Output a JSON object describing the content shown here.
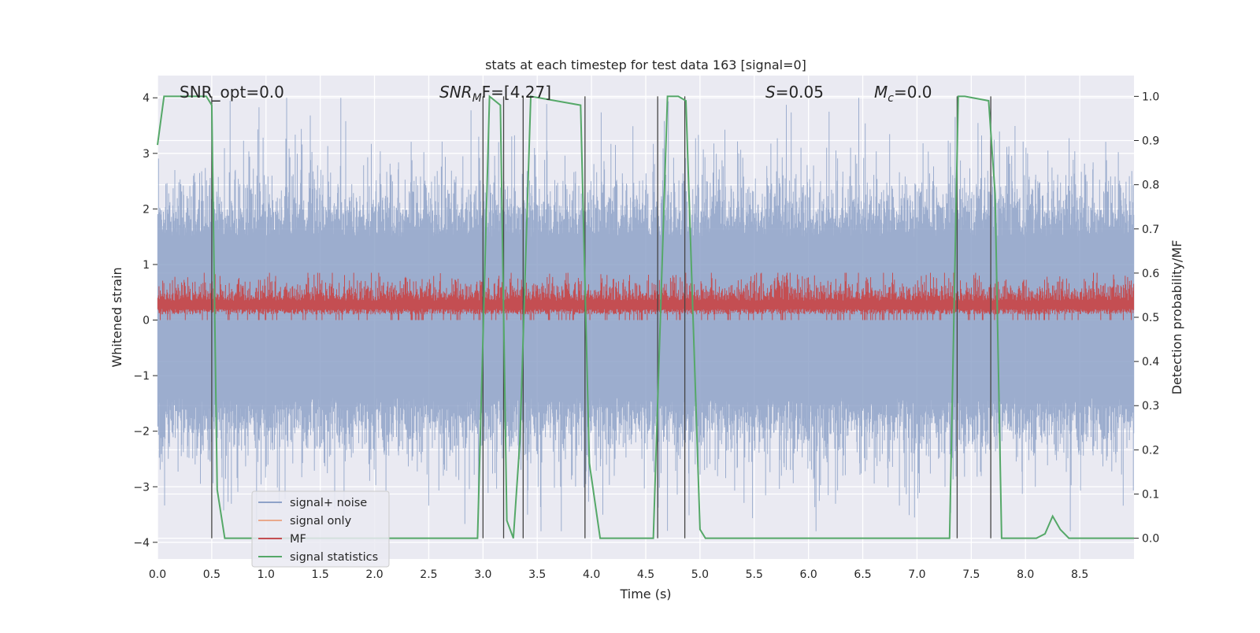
{
  "chart_data": {
    "type": "line",
    "title": "stats at each timestep for test data 163 [signal=0]",
    "xlabel": "Time (s)",
    "ylabel_left": "Whitened strain",
    "ylabel_right": "Detection probability/MF",
    "xlim": [
      0.0,
      9.0
    ],
    "ylim_left": [
      -4.3,
      4.4
    ],
    "ylim_right": [
      -0.047,
      1.047
    ],
    "xticks": [
      0.0,
      0.5,
      1.0,
      1.5,
      2.0,
      2.5,
      3.0,
      3.5,
      4.0,
      4.5,
      5.0,
      5.5,
      6.0,
      6.5,
      7.0,
      7.5,
      8.0,
      8.5
    ],
    "xtick_labels": [
      "0.0",
      "0.5",
      "1.0",
      "1.5",
      "2.0",
      "2.5",
      "3.0",
      "3.5",
      "4.0",
      "4.5",
      "5.0",
      "5.5",
      "6.0",
      "6.5",
      "7.0",
      "7.5",
      "8.0",
      "8.5"
    ],
    "yticks_left": [
      4,
      3,
      2,
      1,
      0,
      -1,
      -2,
      -3,
      -4
    ],
    "ytick_labels_left": [
      "4",
      "3",
      "2",
      "1",
      "0",
      "−1",
      "−2",
      "−3",
      "−4"
    ],
    "yticks_right": [
      1.0,
      0.9,
      0.8,
      0.7,
      0.6,
      0.5,
      0.4,
      0.3,
      0.2,
      0.1,
      0.0
    ],
    "ytick_labels_right": [
      "1.0",
      "0.9",
      "0.8",
      "0.7",
      "0.6",
      "0.5",
      "0.4",
      "0.3",
      "0.2",
      "0.1",
      "0.0"
    ],
    "grid": true,
    "legend_placement": "lower-left",
    "annotations": {
      "snr_opt": "SNR_opt=0.0",
      "snr_mf_base": "SNR",
      "snr_mf_sub": "M",
      "snr_mf_value": "F=[4.27]",
      "s_symbol": "S",
      "s_value": "=0.05",
      "mc_base": "M",
      "mc_sub": "c",
      "mc_value": "=0.0"
    },
    "series": [
      {
        "name": "signal+ noise",
        "color": "#8ea2c8",
        "description_values": "whitened noise, amplitude mostly within ±2.5, peaks up to ±4"
      },
      {
        "name": "signal only",
        "color": "#e9a98c",
        "values": []
      },
      {
        "name": "MF",
        "color": "#c44e52",
        "range_left_axis": [
          0.0,
          0.85
        ]
      },
      {
        "name": "signal statistics",
        "color": "#55a868",
        "axis": "right",
        "x": [
          0.0,
          0.06,
          0.45,
          0.5,
          0.55,
          0.62,
          2.95,
          3.06,
          3.16,
          3.22,
          3.28,
          3.34,
          3.44,
          3.9,
          3.98,
          4.08,
          4.12,
          4.57,
          4.7,
          4.8,
          4.87,
          5.0,
          5.05,
          5.1,
          7.3,
          7.38,
          7.44,
          7.66,
          7.72,
          7.78,
          7.85,
          8.1,
          8.18,
          8.25,
          8.32,
          8.4,
          9.0
        ],
        "values": [
          0.89,
          1.0,
          1.0,
          0.98,
          0.11,
          0.0,
          0.0,
          1.0,
          0.98,
          0.04,
          0.0,
          0.22,
          1.0,
          0.98,
          0.17,
          0.0,
          0.0,
          0.0,
          1.0,
          1.0,
          0.99,
          0.02,
          0.0,
          0.0,
          0.0,
          1.0,
          1.0,
          0.99,
          0.78,
          0.0,
          0.0,
          0.0,
          0.01,
          0.05,
          0.02,
          0.0,
          0.0
        ]
      }
    ],
    "vertical_lines_x": [
      0.5,
      3.0,
      3.19,
      3.37,
      3.94,
      4.61,
      4.86,
      7.37,
      7.68
    ]
  }
}
